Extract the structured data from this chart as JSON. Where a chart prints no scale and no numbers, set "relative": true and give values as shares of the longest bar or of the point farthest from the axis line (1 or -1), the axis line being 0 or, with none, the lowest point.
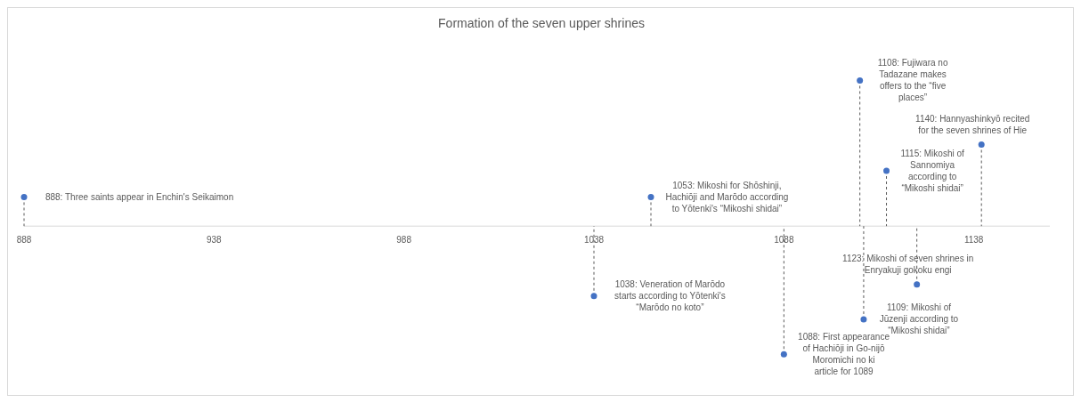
{
  "chart_data": {
    "type": "lollipop",
    "line_style": "dashed",
    "title": "Formation of the seven upper shrines",
    "relative": true,
    "marker": "circle",
    "x": [
      888,
      1038,
      1053,
      1088,
      1108,
      1109,
      1115,
      1123,
      1140
    ],
    "series": [
      {
        "color": "#4472c4",
        "values": [
          0.2,
          -0.48,
          0.2,
          -0.88,
          1,
          -0.64,
          0.38,
          -0.4,
          0.56
        ]
      }
    ],
    "xlim": [
      888,
      1158
    ],
    "xticks": [
      888,
      938,
      988,
      1038,
      1088,
      1138
    ],
    "annotations": [
      {
        "text": "888: Three saints appear in Enchin's Seikaimon",
        "x": 888,
        "y": 0.2
      },
      {
        "text": "1038: Veneration of Marōdo\nstarts according to Yōtenki's\n“Marōdo no koto”",
        "x": 1038,
        "y": -0.48
      },
      {
        "text": "1053: Mikoshi for Shōshinji,\nHachiōji and Marōdo according\nto Yōtenki's “Mikoshi shidai”",
        "x": 1053,
        "y": 0.2
      },
      {
        "text": "1088: First appearance\nof Hachiōji in Go-nijō\nMoromichi no ki\narticle for 1089",
        "x": 1088,
        "y": -0.88
      },
      {
        "text": "1108: Fujiwara no\nTadazane makes\noffers to the “five\nplaces”",
        "x": 1108,
        "y": 1
      },
      {
        "text": "1109: Mikoshi of\nJūzenji according to\n“Mikoshi shidai”",
        "x": 1109,
        "y": -0.64
      },
      {
        "text": "1115: Mikoshi of\nSannomiya\naccording to\n“Mikoshi shidai”",
        "x": 1115,
        "y": 0.38
      },
      {
        "text": "1123: Mikoshi of seven shrines in\nEnryakuji gokoku engi",
        "x": 1123,
        "y": -0.4
      },
      {
        "text": "1140: Hannyashinkyō recited\nfor the seven shrines of Hie",
        "x": 1140,
        "y": 0.56
      }
    ]
  }
}
